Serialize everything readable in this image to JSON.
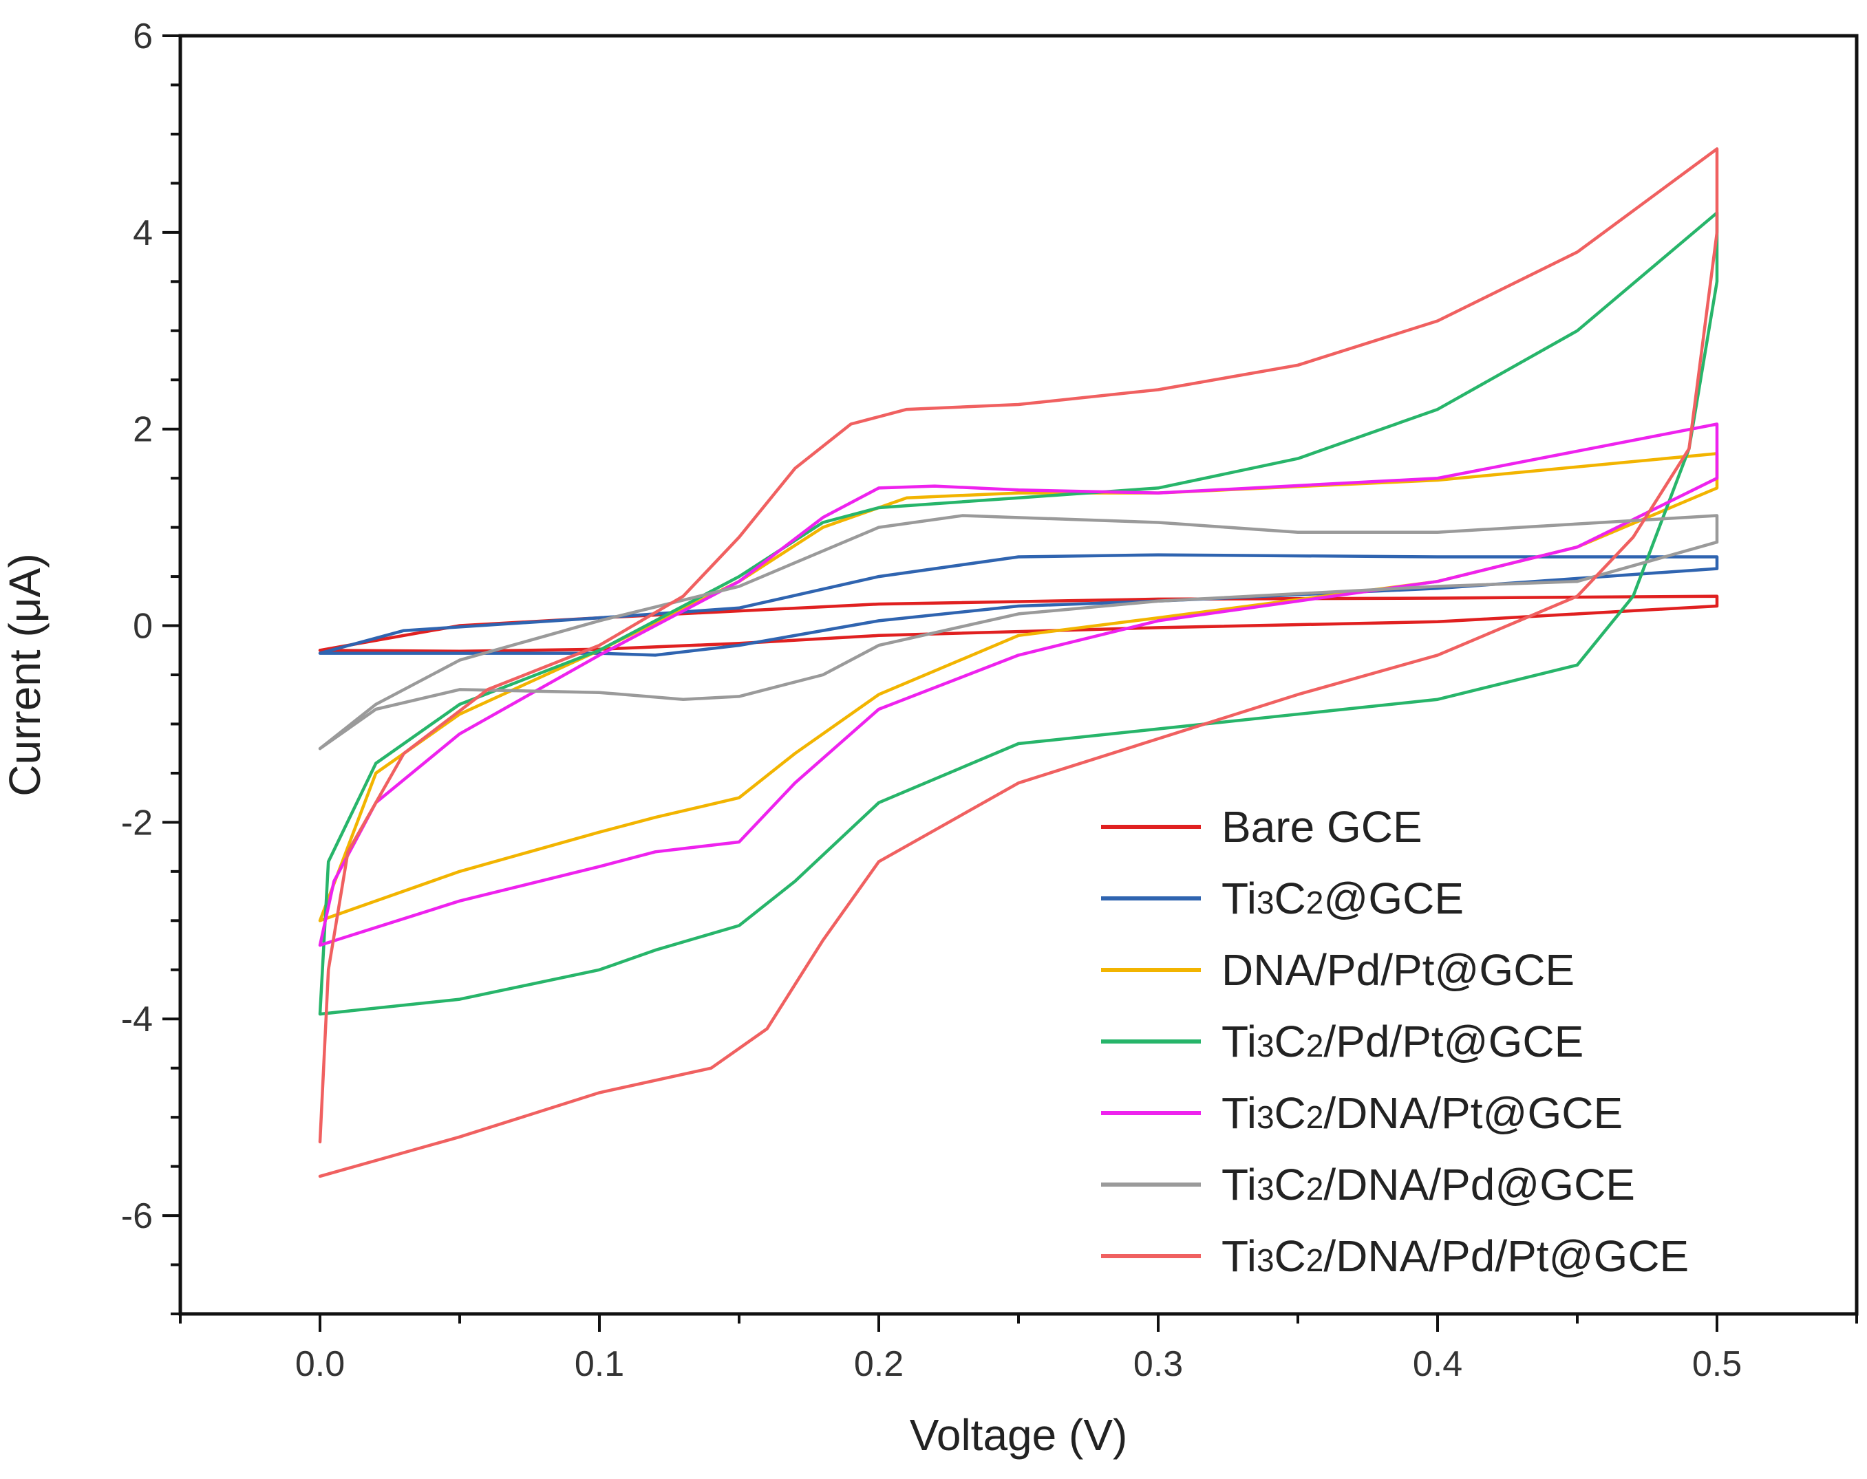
{
  "chart_data": {
    "type": "line",
    "title": "",
    "xlabel": "Voltage (V)",
    "ylabel": "Current (μA)",
    "xlim": [
      -0.05,
      0.55
    ],
    "ylim": [
      -7,
      6
    ],
    "grid": false,
    "legend_position": "bottom-right",
    "xticks": [
      {
        "value": 0.0,
        "label": "0.0"
      },
      {
        "value": 0.1,
        "label": "0.1"
      },
      {
        "value": 0.2,
        "label": "0.2"
      },
      {
        "value": 0.3,
        "label": "0.3"
      },
      {
        "value": 0.4,
        "label": "0.4"
      },
      {
        "value": 0.5,
        "label": "0.5"
      }
    ],
    "yticks": [
      {
        "value": 6,
        "label": "6"
      },
      {
        "value": 4,
        "label": "4"
      },
      {
        "value": 2,
        "label": "2"
      },
      {
        "value": 0,
        "label": "0"
      },
      {
        "value": -2,
        "label": "-2"
      },
      {
        "value": -4,
        "label": "-4"
      },
      {
        "value": -6,
        "label": "-6"
      }
    ],
    "series": [
      {
        "name": "Bare GCE",
        "legend": {
          "prefix": "Bare GCE",
          "sub": "",
          "mid": "",
          "sub2": "",
          "suffix": ""
        },
        "color": "#e02020",
        "points": [
          [
            0.0,
            -0.25
          ],
          [
            0.05,
            0.0
          ],
          [
            0.1,
            0.08
          ],
          [
            0.2,
            0.22
          ],
          [
            0.3,
            0.27
          ],
          [
            0.4,
            0.28
          ],
          [
            0.5,
            0.3
          ],
          [
            0.5,
            0.2
          ],
          [
            0.4,
            0.04
          ],
          [
            0.3,
            -0.02
          ],
          [
            0.2,
            -0.1
          ],
          [
            0.15,
            -0.18
          ],
          [
            0.1,
            -0.24
          ],
          [
            0.05,
            -0.26
          ],
          [
            0.0,
            -0.25
          ]
        ]
      },
      {
        "name": "Ti3C2@GCE",
        "legend": {
          "prefix": "Ti",
          "sub": "3",
          "mid": "C",
          "sub2": "2",
          "suffix": "@GCE"
        },
        "color": "#2f64b0",
        "points": [
          [
            0.0,
            -0.28
          ],
          [
            0.03,
            -0.05
          ],
          [
            0.1,
            0.08
          ],
          [
            0.15,
            0.18
          ],
          [
            0.2,
            0.5
          ],
          [
            0.25,
            0.7
          ],
          [
            0.3,
            0.72
          ],
          [
            0.4,
            0.7
          ],
          [
            0.5,
            0.7
          ],
          [
            0.5,
            0.58
          ],
          [
            0.45,
            0.48
          ],
          [
            0.4,
            0.38
          ],
          [
            0.3,
            0.25
          ],
          [
            0.25,
            0.2
          ],
          [
            0.2,
            0.05
          ],
          [
            0.15,
            -0.2
          ],
          [
            0.12,
            -0.3
          ],
          [
            0.1,
            -0.28
          ],
          [
            0.05,
            -0.28
          ],
          [
            0.0,
            -0.28
          ]
        ]
      },
      {
        "name": "DNA/Pd/Pt@GCE",
        "legend": {
          "prefix": "DNA/Pd/Pt@GCE",
          "sub": "",
          "mid": "",
          "sub2": "",
          "suffix": ""
        },
        "color": "#f2b400",
        "points": [
          [
            0.0,
            -3.0
          ],
          [
            0.02,
            -1.5
          ],
          [
            0.05,
            -0.9
          ],
          [
            0.1,
            -0.25
          ],
          [
            0.15,
            0.45
          ],
          [
            0.18,
            1.0
          ],
          [
            0.21,
            1.3
          ],
          [
            0.25,
            1.35
          ],
          [
            0.3,
            1.35
          ],
          [
            0.4,
            1.48
          ],
          [
            0.5,
            1.75
          ],
          [
            0.5,
            1.4
          ],
          [
            0.45,
            0.8
          ],
          [
            0.4,
            0.45
          ],
          [
            0.3,
            0.08
          ],
          [
            0.25,
            -0.1
          ],
          [
            0.2,
            -0.7
          ],
          [
            0.17,
            -1.3
          ],
          [
            0.15,
            -1.75
          ],
          [
            0.12,
            -1.95
          ],
          [
            0.1,
            -2.1
          ],
          [
            0.05,
            -2.5
          ],
          [
            0.0,
            -3.0
          ]
        ]
      },
      {
        "name": "Ti3C2/Pd/Pt@GCE",
        "legend": {
          "prefix": "Ti",
          "sub": "3",
          "mid": "C",
          "sub2": "2",
          "suffix": "/Pd/Pt@GCE"
        },
        "color": "#27b56a",
        "points": [
          [
            0.0,
            -3.95
          ],
          [
            0.003,
            -2.4
          ],
          [
            0.02,
            -1.4
          ],
          [
            0.05,
            -0.8
          ],
          [
            0.1,
            -0.25
          ],
          [
            0.15,
            0.5
          ],
          [
            0.18,
            1.05
          ],
          [
            0.2,
            1.2
          ],
          [
            0.25,
            1.3
          ],
          [
            0.3,
            1.4
          ],
          [
            0.35,
            1.7
          ],
          [
            0.4,
            2.2
          ],
          [
            0.45,
            3.0
          ],
          [
            0.5,
            4.2
          ],
          [
            0.5,
            3.5
          ],
          [
            0.49,
            1.8
          ],
          [
            0.47,
            0.3
          ],
          [
            0.45,
            -0.4
          ],
          [
            0.4,
            -0.75
          ],
          [
            0.35,
            -0.9
          ],
          [
            0.3,
            -1.05
          ],
          [
            0.25,
            -1.2
          ],
          [
            0.2,
            -1.8
          ],
          [
            0.17,
            -2.6
          ],
          [
            0.15,
            -3.05
          ],
          [
            0.12,
            -3.3
          ],
          [
            0.1,
            -3.5
          ],
          [
            0.05,
            -3.8
          ],
          [
            0.0,
            -3.95
          ]
        ]
      },
      {
        "name": "Ti3C2/DNA/Pt@GCE",
        "legend": {
          "prefix": "Ti",
          "sub": "3",
          "mid": "C",
          "sub2": "2",
          "suffix": "/DNA/Pt@GCE"
        },
        "color": "#ee22ee",
        "points": [
          [
            0.0,
            -3.25
          ],
          [
            0.005,
            -2.6
          ],
          [
            0.02,
            -1.8
          ],
          [
            0.05,
            -1.1
          ],
          [
            0.1,
            -0.3
          ],
          [
            0.15,
            0.45
          ],
          [
            0.18,
            1.1
          ],
          [
            0.2,
            1.4
          ],
          [
            0.22,
            1.42
          ],
          [
            0.25,
            1.38
          ],
          [
            0.3,
            1.35
          ],
          [
            0.4,
            1.5
          ],
          [
            0.5,
            2.05
          ],
          [
            0.5,
            1.5
          ],
          [
            0.45,
            0.8
          ],
          [
            0.4,
            0.45
          ],
          [
            0.3,
            0.05
          ],
          [
            0.25,
            -0.3
          ],
          [
            0.2,
            -0.85
          ],
          [
            0.17,
            -1.6
          ],
          [
            0.15,
            -2.2
          ],
          [
            0.12,
            -2.3
          ],
          [
            0.1,
            -2.45
          ],
          [
            0.05,
            -2.8
          ],
          [
            0.0,
            -3.25
          ]
        ]
      },
      {
        "name": "Ti3C2/DNA/Pd@GCE",
        "legend": {
          "prefix": "Ti",
          "sub": "3",
          "mid": "C",
          "sub2": "2",
          "suffix": "/DNA/Pd@GCE"
        },
        "color": "#9a9a9a",
        "points": [
          [
            0.0,
            -1.25
          ],
          [
            0.02,
            -0.8
          ],
          [
            0.05,
            -0.35
          ],
          [
            0.1,
            0.05
          ],
          [
            0.15,
            0.4
          ],
          [
            0.2,
            1.0
          ],
          [
            0.23,
            1.12
          ],
          [
            0.3,
            1.05
          ],
          [
            0.35,
            0.95
          ],
          [
            0.4,
            0.95
          ],
          [
            0.5,
            1.12
          ],
          [
            0.5,
            0.85
          ],
          [
            0.45,
            0.45
          ],
          [
            0.4,
            0.4
          ],
          [
            0.3,
            0.25
          ],
          [
            0.25,
            0.12
          ],
          [
            0.2,
            -0.2
          ],
          [
            0.18,
            -0.5
          ],
          [
            0.15,
            -0.72
          ],
          [
            0.13,
            -0.75
          ],
          [
            0.1,
            -0.68
          ],
          [
            0.05,
            -0.65
          ],
          [
            0.02,
            -0.85
          ],
          [
            0.0,
            -1.25
          ]
        ]
      },
      {
        "name": "Ti3C2/DNA/Pd/Pt@GCE",
        "legend": {
          "prefix": "Ti",
          "sub": "3",
          "mid": "C",
          "sub2": "2",
          "suffix": "/DNA/Pd/Pt@GCE"
        },
        "color": "#f06060",
        "points": [
          [
            0.0,
            -5.25
          ],
          [
            0.003,
            -3.5
          ],
          [
            0.01,
            -2.3
          ],
          [
            0.03,
            -1.3
          ],
          [
            0.06,
            -0.65
          ],
          [
            0.1,
            -0.2
          ],
          [
            0.13,
            0.3
          ],
          [
            0.15,
            0.9
          ],
          [
            0.17,
            1.6
          ],
          [
            0.19,
            2.05
          ],
          [
            0.21,
            2.2
          ],
          [
            0.25,
            2.25
          ],
          [
            0.3,
            2.4
          ],
          [
            0.35,
            2.65
          ],
          [
            0.4,
            3.1
          ],
          [
            0.45,
            3.8
          ],
          [
            0.5,
            4.85
          ],
          [
            0.5,
            4.0
          ],
          [
            0.49,
            1.8
          ],
          [
            0.47,
            0.9
          ],
          [
            0.45,
            0.3
          ],
          [
            0.4,
            -0.3
          ],
          [
            0.35,
            -0.7
          ],
          [
            0.3,
            -1.15
          ],
          [
            0.25,
            -1.6
          ],
          [
            0.2,
            -2.4
          ],
          [
            0.18,
            -3.2
          ],
          [
            0.16,
            -4.1
          ],
          [
            0.14,
            -4.5
          ],
          [
            0.1,
            -4.75
          ],
          [
            0.05,
            -5.2
          ],
          [
            0.0,
            -5.6
          ]
        ]
      }
    ]
  }
}
